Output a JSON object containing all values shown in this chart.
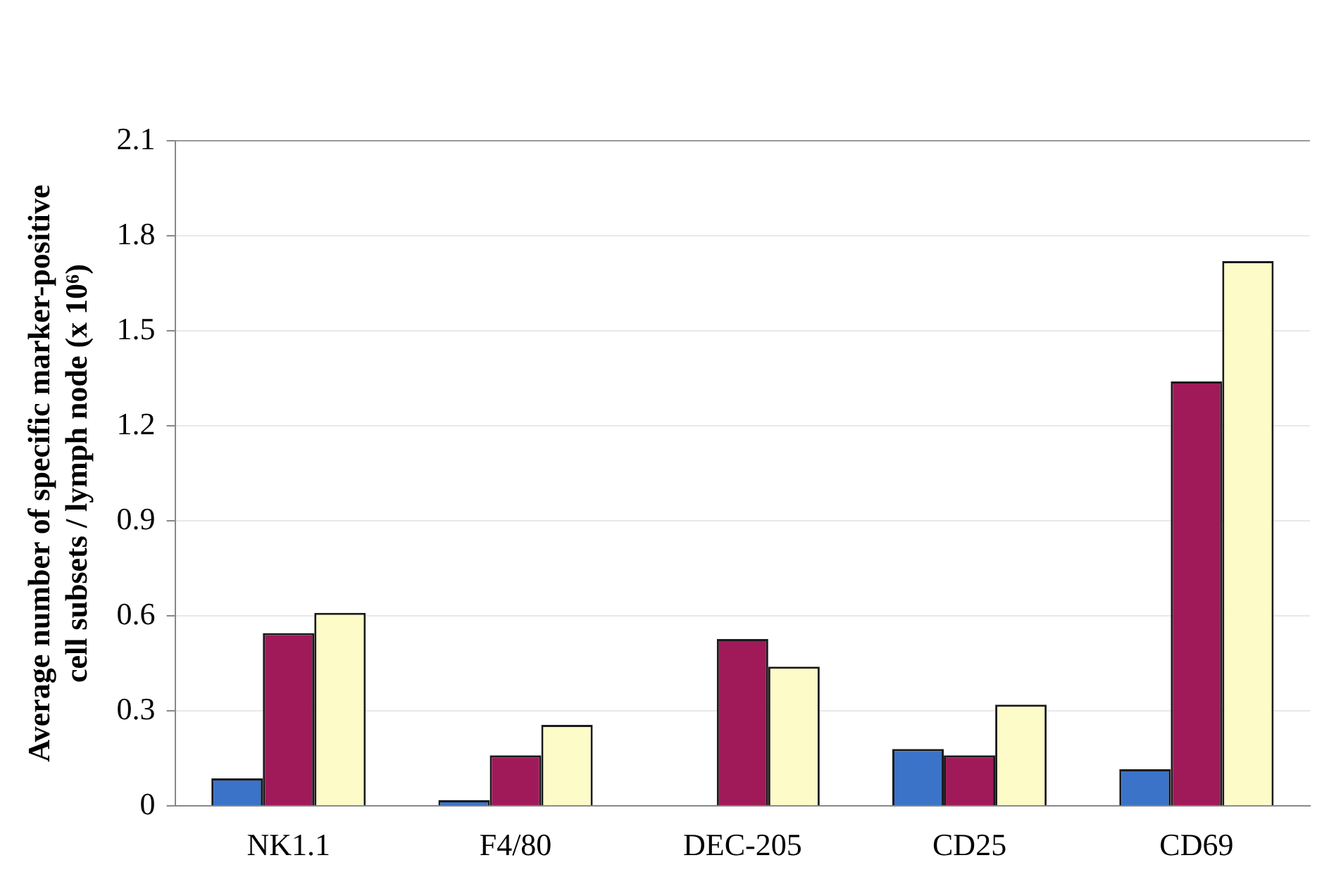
{
  "chart_data": {
    "type": "bar",
    "ylabel": "Average number of specific marker-positive cell subsets / lymph node (x 10⁶)",
    "categories": [
      "NK1.1",
      "F4/80",
      "DEC-205",
      "CD25",
      "CD69"
    ],
    "series": [
      {
        "color": "#3b73c8",
        "values": [
          0.087,
          0.018,
          0,
          0.18,
          0.116
        ]
      },
      {
        "color": "#a01a5a",
        "values": [
          0.546,
          0.16,
          0.527,
          0.16,
          1.34
        ]
      },
      {
        "color": "#fdfbc8",
        "values": [
          0.61,
          0.256,
          0.44,
          0.32,
          1.72
        ]
      }
    ],
    "ylim": [
      0,
      2.1
    ],
    "yticks": [
      0,
      0.3,
      0.6,
      0.9,
      1.2,
      1.5,
      1.8,
      2.1
    ],
    "grid": "y",
    "legend": false
  }
}
